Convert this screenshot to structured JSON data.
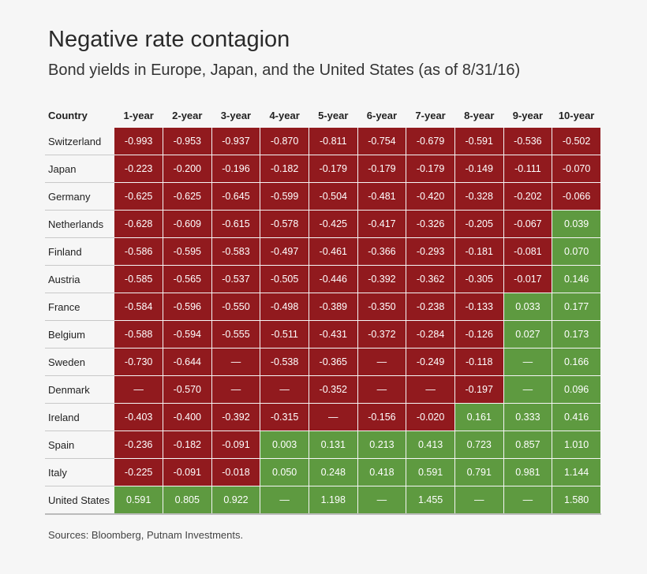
{
  "title": "Negative rate contagion",
  "subtitle": "Bond yields in Europe, Japan, and the United States (as of 8/31/16)",
  "source": "Sources: Bloomberg, Putnam Investments.",
  "colors": {
    "negative": "#911a1e",
    "positive": "#5e9a40"
  },
  "chart_data": {
    "type": "heatmap",
    "title": "Negative rate contagion",
    "row_header": "Country",
    "columns": [
      "1-year",
      "2-year",
      "3-year",
      "4-year",
      "5-year",
      "6-year",
      "7-year",
      "8-year",
      "9-year",
      "10-year"
    ],
    "rows": [
      {
        "country": "Switzerland",
        "values": [
          "-0.993",
          "-0.953",
          "-0.937",
          "-0.870",
          "-0.811",
          "-0.754",
          "-0.679",
          "-0.591",
          "-0.536",
          "-0.502"
        ],
        "sign": [
          "n",
          "n",
          "n",
          "n",
          "n",
          "n",
          "n",
          "n",
          "n",
          "n"
        ]
      },
      {
        "country": "Japan",
        "values": [
          "-0.223",
          "-0.200",
          "-0.196",
          "-0.182",
          "-0.179",
          "-0.179",
          "-0.179",
          "-0.149",
          "-0.111",
          "-0.070"
        ],
        "sign": [
          "n",
          "n",
          "n",
          "n",
          "n",
          "n",
          "n",
          "n",
          "n",
          "n"
        ]
      },
      {
        "country": "Germany",
        "values": [
          "-0.625",
          "-0.625",
          "-0.645",
          "-0.599",
          "-0.504",
          "-0.481",
          "-0.420",
          "-0.328",
          "-0.202",
          "-0.066"
        ],
        "sign": [
          "n",
          "n",
          "n",
          "n",
          "n",
          "n",
          "n",
          "n",
          "n",
          "n"
        ]
      },
      {
        "country": "Netherlands",
        "values": [
          "-0.628",
          "-0.609",
          "-0.615",
          "-0.578",
          "-0.425",
          "-0.417",
          "-0.326",
          "-0.205",
          "-0.067",
          "0.039"
        ],
        "sign": [
          "n",
          "n",
          "n",
          "n",
          "n",
          "n",
          "n",
          "n",
          "n",
          "p"
        ]
      },
      {
        "country": "Finland",
        "values": [
          "-0.586",
          "-0.595",
          "-0.583",
          "-0.497",
          "-0.461",
          "-0.366",
          "-0.293",
          "-0.181",
          "-0.081",
          "0.070"
        ],
        "sign": [
          "n",
          "n",
          "n",
          "n",
          "n",
          "n",
          "n",
          "n",
          "n",
          "p"
        ]
      },
      {
        "country": "Austria",
        "values": [
          "-0.585",
          "-0.565",
          "-0.537",
          "-0.505",
          "-0.446",
          "-0.392",
          "-0.362",
          "-0.305",
          "-0.017",
          "0.146"
        ],
        "sign": [
          "n",
          "n",
          "n",
          "n",
          "n",
          "n",
          "n",
          "n",
          "n",
          "p"
        ]
      },
      {
        "country": "France",
        "values": [
          "-0.584",
          "-0.596",
          "-0.550",
          "-0.498",
          "-0.389",
          "-0.350",
          "-0.238",
          "-0.133",
          "0.033",
          "0.177"
        ],
        "sign": [
          "n",
          "n",
          "n",
          "n",
          "n",
          "n",
          "n",
          "n",
          "p",
          "p"
        ]
      },
      {
        "country": "Belgium",
        "values": [
          "-0.588",
          "-0.594",
          "-0.555",
          "-0.511",
          "-0.431",
          "-0.372",
          "-0.284",
          "-0.126",
          "0.027",
          "0.173"
        ],
        "sign": [
          "n",
          "n",
          "n",
          "n",
          "n",
          "n",
          "n",
          "n",
          "p",
          "p"
        ]
      },
      {
        "country": "Sweden",
        "values": [
          "-0.730",
          "-0.644",
          "—",
          "-0.538",
          "-0.365",
          "—",
          "-0.249",
          "-0.118",
          "—",
          "0.166"
        ],
        "sign": [
          "n",
          "n",
          "n",
          "n",
          "n",
          "n",
          "n",
          "n",
          "p",
          "p"
        ]
      },
      {
        "country": "Denmark",
        "values": [
          "—",
          "-0.570",
          "—",
          "—",
          "-0.352",
          "—",
          "—",
          "-0.197",
          "—",
          "0.096"
        ],
        "sign": [
          "n",
          "n",
          "n",
          "n",
          "n",
          "n",
          "n",
          "n",
          "p",
          "p"
        ]
      },
      {
        "country": "Ireland",
        "values": [
          "-0.403",
          "-0.400",
          "-0.392",
          "-0.315",
          "—",
          "-0.156",
          "-0.020",
          "0.161",
          "0.333",
          "0.416"
        ],
        "sign": [
          "n",
          "n",
          "n",
          "n",
          "n",
          "n",
          "n",
          "p",
          "p",
          "p"
        ]
      },
      {
        "country": "Spain",
        "values": [
          "-0.236",
          "-0.182",
          "-0.091",
          "0.003",
          "0.131",
          "0.213",
          "0.413",
          "0.723",
          "0.857",
          "1.010"
        ],
        "sign": [
          "n",
          "n",
          "n",
          "p",
          "p",
          "p",
          "p",
          "p",
          "p",
          "p"
        ]
      },
      {
        "country": "Italy",
        "values": [
          "-0.225",
          "-0.091",
          "-0.018",
          "0.050",
          "0.248",
          "0.418",
          "0.591",
          "0.791",
          "0.981",
          "1.144"
        ],
        "sign": [
          "n",
          "n",
          "n",
          "p",
          "p",
          "p",
          "p",
          "p",
          "p",
          "p"
        ]
      },
      {
        "country": "United States",
        "values": [
          "0.591",
          "0.805",
          "0.922",
          "—",
          "1.198",
          "—",
          "1.455",
          "—",
          "—",
          "1.580"
        ],
        "sign": [
          "p",
          "p",
          "p",
          "p",
          "p",
          "p",
          "p",
          "p",
          "p",
          "p"
        ]
      }
    ]
  }
}
